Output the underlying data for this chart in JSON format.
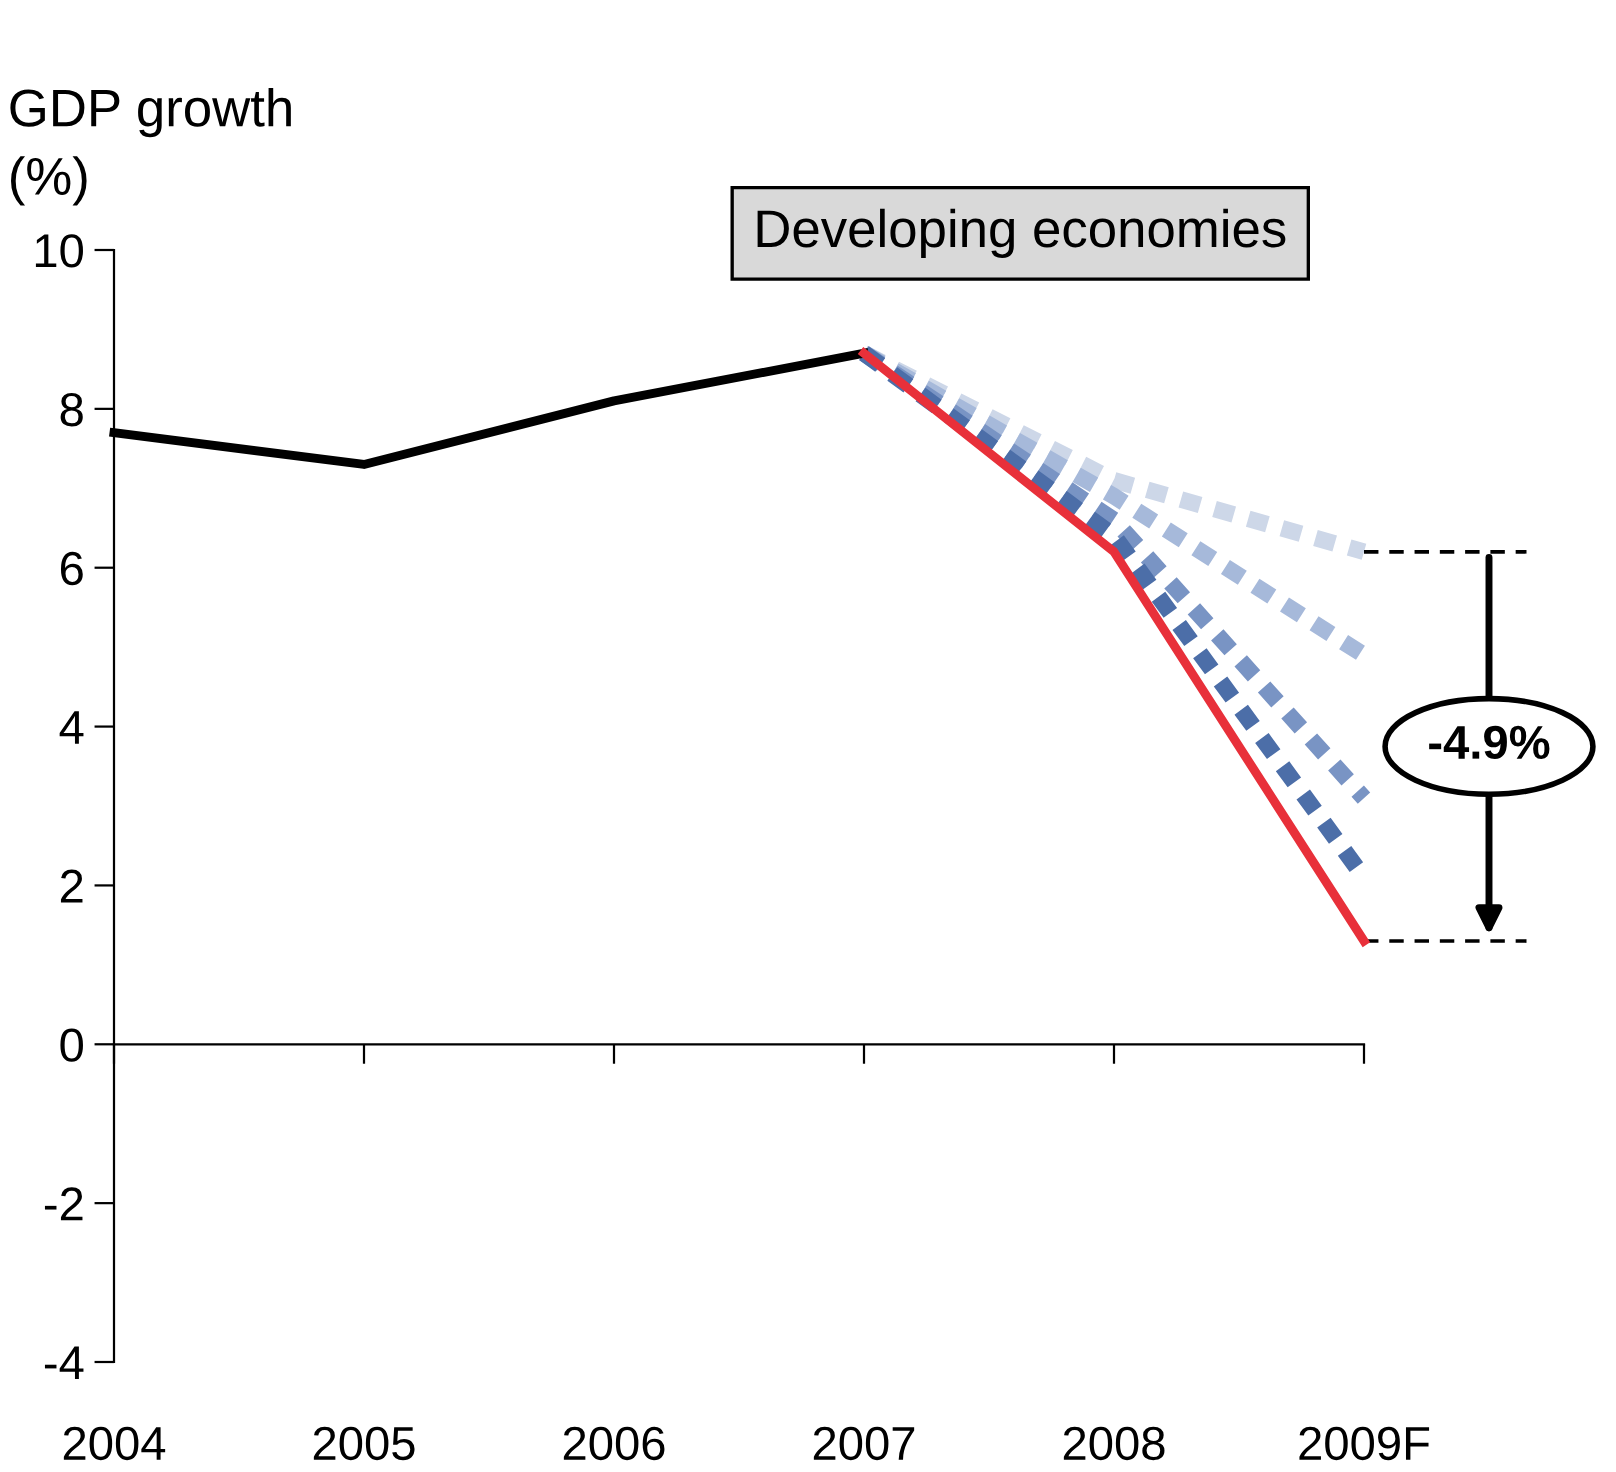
{
  "chart_data": {
    "type": "line",
    "title": "Developing economies",
    "ylabel": "GDP growth\n(%)",
    "categories": [
      "2004",
      "2005",
      "2006",
      "2007",
      "2008",
      "2009F"
    ],
    "series": [
      {
        "color": "#cdd7e8",
        "line_style": "dashed",
        "values": [
          null,
          null,
          null,
          8.7,
          7.1,
          6.2
        ]
      },
      {
        "color": "#a6b9da",
        "line_style": "dashed",
        "values": [
          null,
          null,
          null,
          8.7,
          6.9,
          4.9
        ]
      },
      {
        "color": "#7994c4",
        "line_style": "dashed",
        "values": [
          null,
          null,
          null,
          8.7,
          6.6,
          3.1
        ]
      },
      {
        "color": "#4c6ea8",
        "line_style": "dashed",
        "values": [
          null,
          null,
          null,
          8.7,
          6.4,
          2.1
        ]
      },
      {
        "color": "#000000",
        "line_style": "solid",
        "values": [
          7.7,
          7.3,
          8.1,
          8.7,
          null,
          null
        ]
      },
      {
        "color": "#e8303a",
        "line_style": "solid",
        "values": [
          null,
          null,
          null,
          8.7,
          6.2,
          1.3
        ]
      }
    ],
    "annotations": [
      "-4.9%"
    ],
    "ylim": [
      -4,
      10
    ],
    "yticks": [
      -4,
      -2,
      0,
      2,
      4,
      6,
      8,
      10
    ],
    "legend": false,
    "marker": "none"
  }
}
